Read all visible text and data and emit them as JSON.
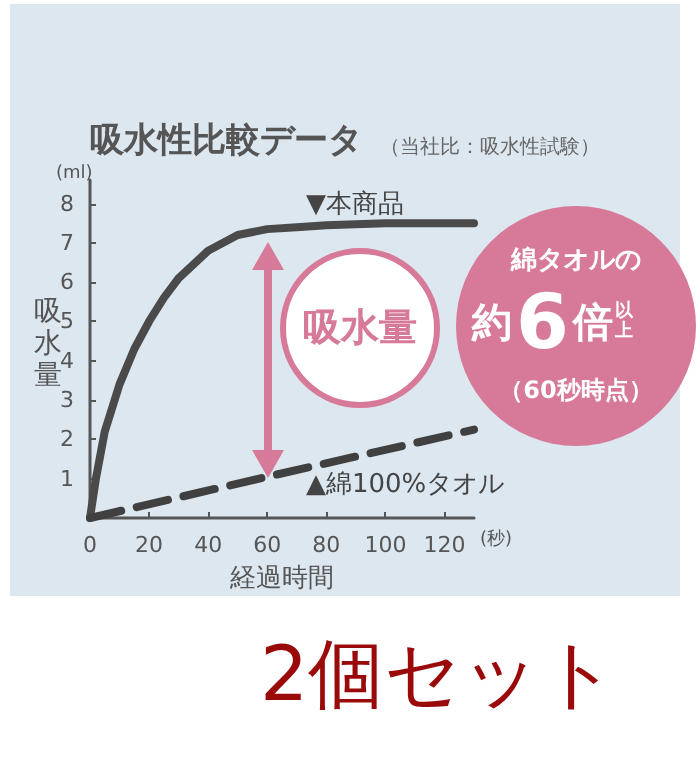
{
  "chart_data": {
    "type": "line",
    "title": "吸水性比較データ",
    "subtitle": "（当社比：吸水性試験）",
    "xlabel": "経過時間",
    "ylabel": "吸水量",
    "x": [
      0,
      2,
      5,
      10,
      15,
      20,
      25,
      30,
      40,
      50,
      60,
      70,
      80,
      100,
      130
    ],
    "series": [
      {
        "name": "▼本商品",
        "color": "#4a4a4a",
        "values": [
          0,
          1.0,
          2.2,
          3.4,
          4.3,
          5.0,
          5.6,
          6.1,
          6.8,
          7.2,
          7.35,
          7.4,
          7.45,
          7.5,
          7.5
        ]
      },
      {
        "name": "▲綿100%タオル",
        "color": "#404040",
        "line_style": "dashed",
        "x": [
          0,
          60,
          130
        ],
        "values": [
          0,
          1.05,
          2.25
        ]
      }
    ],
    "xlim": [
      0,
      130
    ],
    "xticks": [
      0,
      20,
      40,
      60,
      80,
      100,
      120
    ],
    "ylim": [
      0,
      8.6
    ],
    "yticks": [
      1,
      2,
      3,
      4,
      5,
      6,
      7,
      8
    ],
    "grid": false,
    "legend": false,
    "marker": "none",
    "annotations": [
      "(ml)",
      "(秒)",
      "吸水量",
      "綿タオルの",
      "約",
      "6",
      "倍",
      "以上",
      "（60秒時点）",
      "2個セット"
    ]
  }
}
